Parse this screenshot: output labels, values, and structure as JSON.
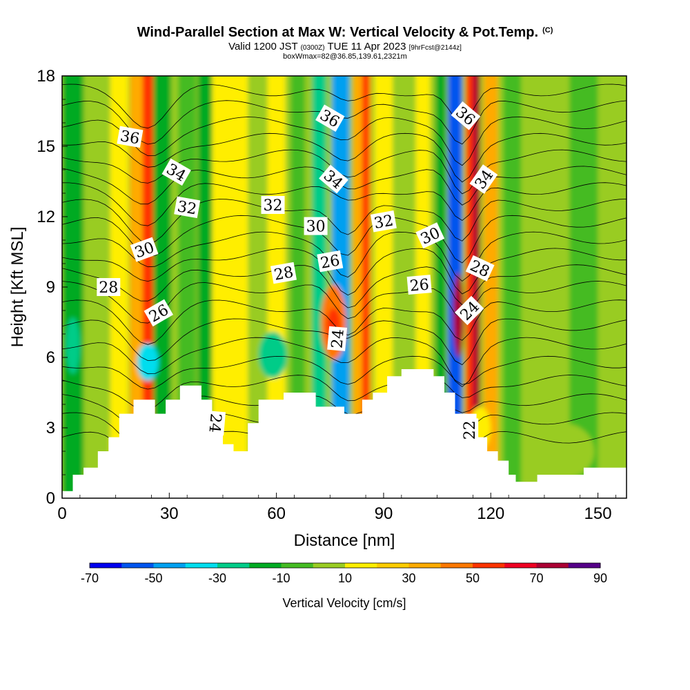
{
  "title": {
    "main": "Wind-Parallel Section at Max W: Vertical Velocity & Pot.Temp.",
    "copyright": "(C)",
    "valid_prefix": "Valid 1200 JST",
    "valid_utc": "(0300Z)",
    "valid_date": "TUE 11 Apr 2023",
    "forecast": "[9hrFcst@2144z]",
    "box": "boxWmax=82@36.85,139.61,2321m"
  },
  "chart_data": {
    "type": "heatmap",
    "xlabel": "Distance [nm]",
    "ylabel": "Height [Kft MSL]",
    "xlim": [
      0,
      158
    ],
    "ylim": [
      0,
      18
    ],
    "x_ticks": [
      "0",
      "30",
      "60",
      "90",
      "120",
      "150"
    ],
    "y_ticks": [
      "0",
      "3",
      "6",
      "9",
      "12",
      "15",
      "18"
    ],
    "colorbar": {
      "label": "Vertical Velocity [cm/s]",
      "tick_labels": [
        "-70",
        "-50",
        "-30",
        "-10",
        "10",
        "30",
        "50",
        "70",
        "90"
      ],
      "levels": [
        -70,
        -60,
        -50,
        -40,
        -30,
        -20,
        -10,
        0,
        10,
        20,
        30,
        40,
        50,
        60,
        70,
        80,
        90
      ],
      "colors": [
        "#0000ee",
        "#0055ee",
        "#00a0f0",
        "#00ddee",
        "#00cc88",
        "#00aa22",
        "#44bb22",
        "#99cc22",
        "#ffee00",
        "#ffcc00",
        "#ffaa00",
        "#ff7700",
        "#ff3300",
        "#ee0022",
        "#aa0033",
        "#550088"
      ]
    },
    "terrain_kft": [
      [
        0,
        0.3
      ],
      [
        3,
        0.3
      ],
      [
        3,
        1.0
      ],
      [
        6,
        1.0
      ],
      [
        6,
        1.3
      ],
      [
        10,
        1.3
      ],
      [
        10,
        2.0
      ],
      [
        13,
        2.0
      ],
      [
        13,
        2.6
      ],
      [
        16,
        2.6
      ],
      [
        16,
        3.6
      ],
      [
        20,
        3.6
      ],
      [
        20,
        4.2
      ],
      [
        26,
        4.2
      ],
      [
        26,
        3.6
      ],
      [
        29,
        3.6
      ],
      [
        29,
        4.2
      ],
      [
        33,
        4.2
      ],
      [
        33,
        4.8
      ],
      [
        39,
        4.8
      ],
      [
        39,
        4.2
      ],
      [
        42,
        4.2
      ],
      [
        42,
        3.6
      ],
      [
        45,
        3.6
      ],
      [
        45,
        2.3
      ],
      [
        48,
        2.3
      ],
      [
        48,
        2.0
      ],
      [
        52,
        2.0
      ],
      [
        52,
        3.2
      ],
      [
        55,
        3.2
      ],
      [
        55,
        4.2
      ],
      [
        62,
        4.2
      ],
      [
        62,
        4.5
      ],
      [
        71,
        4.5
      ],
      [
        71,
        3.9
      ],
      [
        79,
        3.9
      ],
      [
        79,
        3.6
      ],
      [
        84,
        3.6
      ],
      [
        84,
        4.2
      ],
      [
        87,
        4.2
      ],
      [
        87,
        4.5
      ],
      [
        91,
        4.5
      ],
      [
        91,
        5.2
      ],
      [
        95,
        5.2
      ],
      [
        95,
        5.5
      ],
      [
        104,
        5.5
      ],
      [
        104,
        5.2
      ],
      [
        107,
        5.2
      ],
      [
        107,
        4.5
      ],
      [
        110,
        4.5
      ],
      [
        110,
        3.6
      ],
      [
        116,
        3.6
      ],
      [
        116,
        2.6
      ],
      [
        119,
        2.6
      ],
      [
        119,
        2.0
      ],
      [
        122,
        2.0
      ],
      [
        122,
        1.6
      ],
      [
        125,
        1.6
      ],
      [
        125,
        1.0
      ],
      [
        127,
        1.0
      ],
      [
        127,
        0.7
      ],
      [
        133,
        0.7
      ],
      [
        133,
        1.0
      ],
      [
        146,
        1.0
      ],
      [
        146,
        1.3
      ],
      [
        158,
        1.3
      ]
    ],
    "velocity_columns": [
      {
        "x": 3,
        "w": 6,
        "v": -20
      },
      {
        "x": 10,
        "w": 6,
        "v": 5
      },
      {
        "x": 16,
        "w": 5,
        "v": 10
      },
      {
        "x": 22,
        "w": 6,
        "v": 35
      },
      {
        "x": 24,
        "w": 3,
        "v": 50
      },
      {
        "x": 28,
        "w": 5,
        "v": -20
      },
      {
        "x": 35,
        "w": 5,
        "v": -10
      },
      {
        "x": 40,
        "w": 4,
        "v": -20
      },
      {
        "x": 45,
        "w": 6,
        "v": 10
      },
      {
        "x": 50,
        "w": 4,
        "v": 15
      },
      {
        "x": 55,
        "w": 5,
        "v": 0
      },
      {
        "x": 60,
        "w": 5,
        "v": 15
      },
      {
        "x": 66,
        "w": 4,
        "v": -10
      },
      {
        "x": 72,
        "w": 4,
        "v": -30
      },
      {
        "x": 78,
        "w": 5,
        "v": -50
      },
      {
        "x": 84,
        "w": 5,
        "v": 35
      },
      {
        "x": 85,
        "w": 2,
        "v": 55
      },
      {
        "x": 90,
        "w": 5,
        "v": 10
      },
      {
        "x": 96,
        "w": 5,
        "v": 0
      },
      {
        "x": 101,
        "w": 4,
        "v": 15
      },
      {
        "x": 106,
        "w": 3,
        "v": -20
      },
      {
        "x": 110,
        "w": 4,
        "v": -60
      },
      {
        "x": 115,
        "w": 4,
        "v": 55
      },
      {
        "x": 116,
        "w": 2,
        "v": 70
      },
      {
        "x": 120,
        "w": 4,
        "v": 30
      },
      {
        "x": 126,
        "w": 5,
        "v": -10
      },
      {
        "x": 134,
        "w": 8,
        "v": 0
      },
      {
        "x": 146,
        "w": 8,
        "v": -10
      }
    ],
    "velocity_blobs": [
      {
        "x": 76,
        "y": 7.5,
        "rx": 3.5,
        "ry": 1.6,
        "v": 40
      },
      {
        "x": 76,
        "y": 7.3,
        "rx": 2.0,
        "ry": 0.8,
        "v": 50
      },
      {
        "x": 111,
        "y": 7.8,
        "rx": 1.5,
        "ry": 1.8,
        "v": 70
      },
      {
        "x": 59,
        "y": 6.1,
        "rx": 4.0,
        "ry": 1.0,
        "v": -30
      },
      {
        "x": 24,
        "y": 5.8,
        "rx": 3.0,
        "ry": 0.8,
        "v": -40
      },
      {
        "x": 3,
        "y": 6.5,
        "rx": 2.0,
        "ry": 1.2,
        "v": -30
      },
      {
        "x": 140,
        "y": 2.0,
        "rx": 9.0,
        "ry": 1.2,
        "v": 5
      },
      {
        "x": 117,
        "y": 3.0,
        "rx": 3.0,
        "ry": 0.9,
        "v": 15
      }
    ],
    "potential_temperature": {
      "levels": [
        22,
        24,
        26,
        28,
        30,
        32,
        34,
        36
      ],
      "labels": [
        {
          "text": "36",
          "x": 19,
          "y": 15.4,
          "angle": 10
        },
        {
          "text": "34",
          "x": 32,
          "y": 13.9,
          "angle": 30
        },
        {
          "text": "32",
          "x": 35,
          "y": 12.4,
          "angle": 10
        },
        {
          "text": "30",
          "x": 23,
          "y": 10.6,
          "angle": -20
        },
        {
          "text": "28",
          "x": 13,
          "y": 9.0,
          "angle": 0
        },
        {
          "text": "26",
          "x": 27,
          "y": 7.9,
          "angle": -30
        },
        {
          "text": "24",
          "x": 43,
          "y": 3.2,
          "angle": 95
        },
        {
          "text": "32",
          "x": 59,
          "y": 12.5,
          "angle": 0
        },
        {
          "text": "28",
          "x": 62,
          "y": 9.6,
          "angle": -10
        },
        {
          "text": "30",
          "x": 71,
          "y": 11.6,
          "angle": 0
        },
        {
          "text": "26",
          "x": 75,
          "y": 10.1,
          "angle": -10
        },
        {
          "text": "36",
          "x": 75,
          "y": 16.2,
          "angle": 30
        },
        {
          "text": "34",
          "x": 76,
          "y": 13.6,
          "angle": 40
        },
        {
          "text": "24",
          "x": 77,
          "y": 6.8,
          "angle": -85
        },
        {
          "text": "32",
          "x": 90,
          "y": 11.8,
          "angle": -10
        },
        {
          "text": "26",
          "x": 100,
          "y": 9.1,
          "angle": -5
        },
        {
          "text": "30",
          "x": 103,
          "y": 11.2,
          "angle": -25
        },
        {
          "text": "28",
          "x": 117,
          "y": 9.8,
          "angle": 25
        },
        {
          "text": "24",
          "x": 114,
          "y": 8.0,
          "angle": -45
        },
        {
          "text": "36",
          "x": 113,
          "y": 16.3,
          "angle": 40
        },
        {
          "text": "34",
          "x": 118,
          "y": 13.6,
          "angle": -55
        },
        {
          "text": "22",
          "x": 114,
          "y": 2.9,
          "angle": -90
        }
      ]
    }
  }
}
